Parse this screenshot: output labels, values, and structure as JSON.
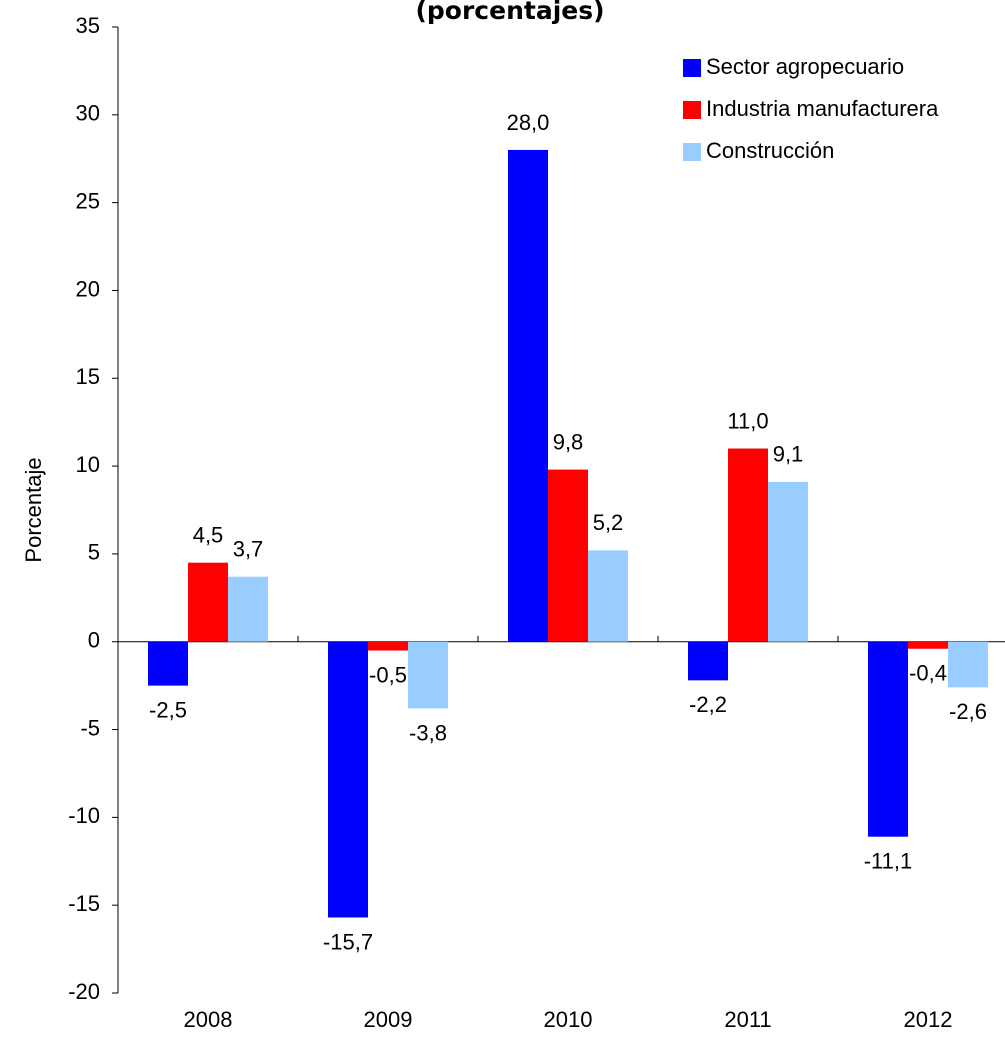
{
  "chart_data": {
    "type": "bar",
    "title": "(porcentajes)",
    "y_label": "Porcentaje",
    "categories": [
      "2008",
      "2009",
      "2010",
      "2011",
      "2012"
    ],
    "series": [
      {
        "name": "Sector agropecuario",
        "color": "#0000ff",
        "values": [
          -2.5,
          -15.7,
          28.0,
          -2.2,
          -11.1
        ],
        "value_labels": [
          "-2,5",
          "-15,7",
          "28,0",
          "-2,2",
          "-11,1"
        ]
      },
      {
        "name": "Industria manufacturera",
        "color": "#ff0000",
        "values": [
          4.5,
          -0.5,
          9.8,
          11.0,
          -0.4
        ],
        "value_labels": [
          "4,5",
          "-0,5",
          "9,8",
          "11,0",
          "-0,4"
        ]
      },
      {
        "name": "Construcción",
        "color": "#99ccff",
        "values": [
          3.7,
          -3.8,
          5.2,
          9.1,
          -2.6
        ],
        "value_labels": [
          "3,7",
          "-3,8",
          "5,2",
          "9,1",
          "-2,6"
        ]
      }
    ],
    "ylim": [
      -20,
      35
    ],
    "yticks": [
      -20,
      -15,
      -10,
      -5,
      0,
      5,
      10,
      15,
      20,
      25,
      30,
      35
    ],
    "grid": false,
    "legend": "top-right"
  }
}
